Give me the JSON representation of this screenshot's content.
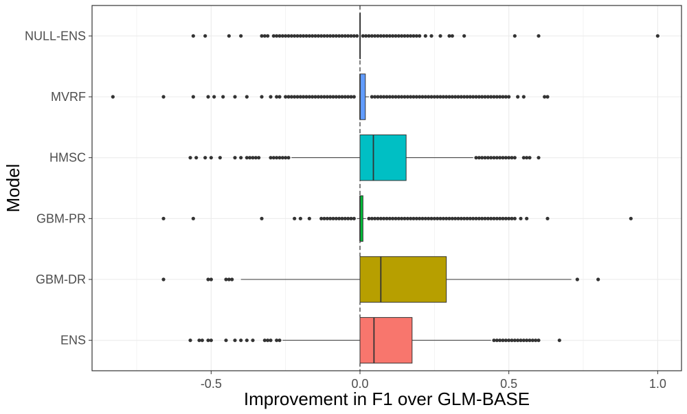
{
  "chart_data": {
    "type": "boxplot",
    "orientation": "horizontal",
    "xlabel": "Improvement in F1 over GLM-BASE",
    "ylabel": "Model",
    "xlim": [
      -0.9,
      1.08
    ],
    "x_ticks": [
      -0.5,
      0.0,
      0.5,
      1.0
    ],
    "x_tick_labels": [
      "-0.5",
      "0.0",
      "0.5",
      "1.0"
    ],
    "reference_line": 0.0,
    "grid": true,
    "series": [
      {
        "name": "NULL-ENS",
        "color": "#FFFFFF",
        "q1": 0.0,
        "median": 0.0,
        "q3": 0.0,
        "whisker_low": 0.0,
        "whisker_high": 0.0,
        "outliers": [
          -0.56,
          -0.52,
          -0.44,
          -0.4,
          -0.33,
          -0.32,
          -0.31,
          -0.29,
          -0.28,
          -0.27,
          -0.26,
          -0.25,
          -0.24,
          -0.23,
          -0.22,
          -0.21,
          -0.2,
          -0.19,
          -0.18,
          -0.17,
          -0.16,
          -0.15,
          -0.14,
          -0.13,
          -0.12,
          -0.11,
          -0.1,
          -0.09,
          -0.08,
          -0.07,
          -0.06,
          -0.05,
          -0.04,
          -0.03,
          -0.02,
          -0.01,
          0.01,
          0.02,
          0.03,
          0.04,
          0.05,
          0.06,
          0.07,
          0.08,
          0.09,
          0.1,
          0.11,
          0.12,
          0.13,
          0.14,
          0.15,
          0.16,
          0.17,
          0.18,
          0.19,
          0.2,
          0.22,
          0.24,
          0.27,
          0.3,
          0.31,
          0.35,
          0.52,
          0.6,
          1.0
        ]
      },
      {
        "name": "MVRF",
        "color": "#619CFF",
        "q1": 0.0,
        "median": 0.0,
        "q3": 0.018,
        "whisker_low": 0.0,
        "whisker_high": 0.03,
        "outliers": [
          -0.83,
          -0.66,
          -0.56,
          -0.51,
          -0.49,
          -0.46,
          -0.42,
          -0.38,
          -0.33,
          -0.3,
          -0.28,
          -0.27,
          -0.25,
          -0.24,
          -0.23,
          -0.22,
          -0.21,
          -0.2,
          -0.19,
          -0.18,
          -0.17,
          -0.16,
          -0.15,
          -0.14,
          -0.13,
          -0.12,
          -0.11,
          -0.1,
          -0.09,
          -0.08,
          -0.07,
          -0.06,
          -0.05,
          -0.04,
          -0.03,
          -0.02,
          0.04,
          0.05,
          0.06,
          0.07,
          0.08,
          0.09,
          0.1,
          0.11,
          0.12,
          0.13,
          0.14,
          0.15,
          0.16,
          0.17,
          0.18,
          0.19,
          0.2,
          0.21,
          0.22,
          0.23,
          0.24,
          0.25,
          0.26,
          0.27,
          0.28,
          0.29,
          0.3,
          0.31,
          0.32,
          0.33,
          0.34,
          0.35,
          0.36,
          0.37,
          0.38,
          0.39,
          0.4,
          0.41,
          0.42,
          0.43,
          0.44,
          0.45,
          0.46,
          0.47,
          0.48,
          0.49,
          0.5,
          0.53,
          0.55,
          0.62,
          0.63
        ]
      },
      {
        "name": "HMSC",
        "color": "#00BFC4",
        "q1": 0.0,
        "median": 0.045,
        "q3": 0.155,
        "whisker_low": -0.23,
        "whisker_high": 0.38,
        "outliers": [
          -0.57,
          -0.55,
          -0.52,
          -0.5,
          -0.47,
          -0.42,
          -0.4,
          -0.38,
          -0.37,
          -0.36,
          -0.35,
          -0.34,
          -0.3,
          -0.29,
          -0.28,
          -0.27,
          -0.26,
          -0.25,
          -0.24,
          0.39,
          0.4,
          0.41,
          0.42,
          0.43,
          0.44,
          0.45,
          0.46,
          0.47,
          0.48,
          0.49,
          0.5,
          0.51,
          0.52,
          0.55,
          0.56,
          0.57,
          0.6
        ]
      },
      {
        "name": "GBM-PR",
        "color": "#00BA38",
        "q1": 0.0,
        "median": 0.0,
        "q3": 0.01,
        "whisker_low": -0.01,
        "whisker_high": 0.02,
        "outliers": [
          -0.66,
          -0.56,
          -0.33,
          -0.22,
          -0.2,
          -0.17,
          -0.13,
          -0.12,
          -0.11,
          -0.1,
          -0.09,
          -0.08,
          -0.07,
          -0.06,
          -0.05,
          -0.04,
          -0.03,
          -0.02,
          0.03,
          0.04,
          0.05,
          0.06,
          0.07,
          0.08,
          0.09,
          0.1,
          0.11,
          0.12,
          0.13,
          0.14,
          0.15,
          0.16,
          0.17,
          0.18,
          0.19,
          0.2,
          0.21,
          0.22,
          0.23,
          0.24,
          0.25,
          0.26,
          0.27,
          0.28,
          0.29,
          0.3,
          0.31,
          0.32,
          0.33,
          0.34,
          0.35,
          0.36,
          0.37,
          0.38,
          0.39,
          0.4,
          0.41,
          0.42,
          0.43,
          0.44,
          0.45,
          0.46,
          0.47,
          0.48,
          0.49,
          0.5,
          0.51,
          0.52,
          0.54,
          0.56,
          0.63,
          0.91
        ]
      },
      {
        "name": "GBM-DR",
        "color": "#B79F00",
        "q1": 0.0,
        "median": 0.07,
        "q3": 0.29,
        "whisker_low": -0.4,
        "whisker_high": 0.71,
        "outliers": [
          -0.66,
          -0.51,
          -0.5,
          -0.45,
          -0.44,
          -0.43,
          0.73,
          0.8
        ]
      },
      {
        "name": "ENS",
        "color": "#F8766D",
        "q1": 0.0,
        "median": 0.047,
        "q3": 0.175,
        "whisker_low": -0.26,
        "whisker_high": 0.44,
        "outliers": [
          -0.57,
          -0.54,
          -0.53,
          -0.51,
          -0.5,
          -0.45,
          -0.42,
          -0.4,
          -0.38,
          -0.36,
          -0.32,
          -0.31,
          -0.3,
          -0.28,
          -0.27,
          0.45,
          0.46,
          0.47,
          0.48,
          0.49,
          0.5,
          0.51,
          0.52,
          0.53,
          0.54,
          0.55,
          0.56,
          0.57,
          0.58,
          0.59,
          0.6,
          0.67
        ]
      }
    ]
  }
}
